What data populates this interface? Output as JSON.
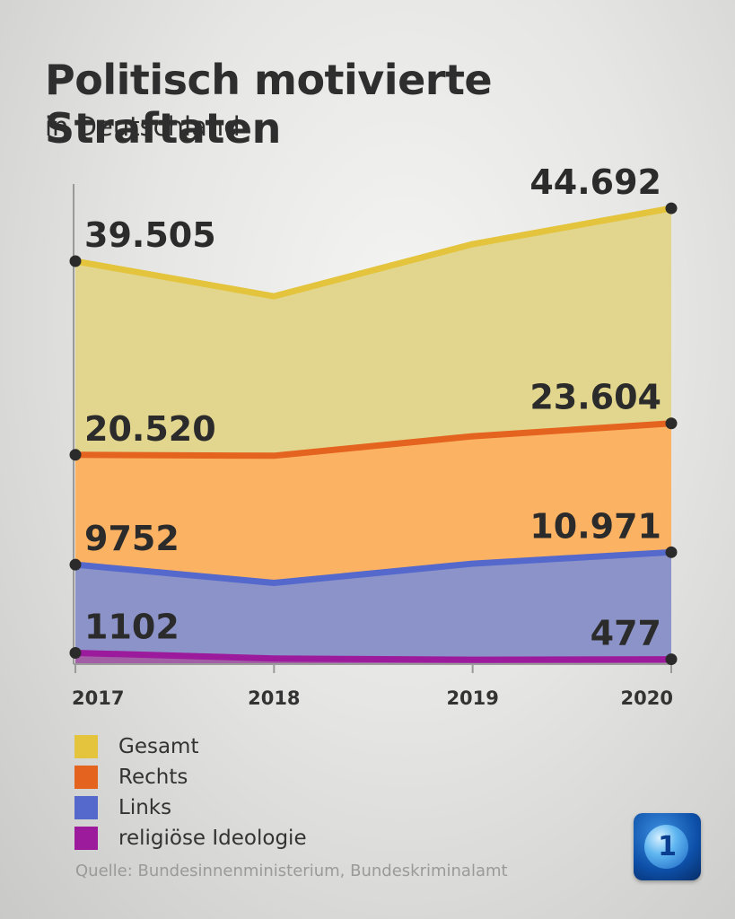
{
  "chart_data": {
    "type": "area",
    "title": "Politisch motivierte Straftaten",
    "subtitle": "in Deutschland",
    "categories": [
      "2017",
      "2018",
      "2019",
      "2020"
    ],
    "ylim": [
      0,
      50000
    ],
    "series": [
      {
        "name": "Gesamt",
        "values": [
          39505,
          36062,
          41177,
          44692
        ],
        "labels": [
          "39.505",
          "",
          "",
          "44.692"
        ],
        "color": "#e3c43c",
        "fill": "#e2d68e"
      },
      {
        "name": "Rechts",
        "values": [
          20520,
          20431,
          22342,
          23604
        ],
        "labels": [
          "20.520",
          "",
          "",
          "23.604"
        ],
        "color": "#e4631e",
        "fill": "#fcb263"
      },
      {
        "name": "Links",
        "values": [
          9752,
          7961,
          9849,
          10971
        ],
        "labels": [
          "9752",
          "",
          "",
          "10.971"
        ],
        "color": "#5568cc",
        "fill": "#8b93c8"
      },
      {
        "name": "religiöse Ideologie",
        "values": [
          1102,
          555,
          425,
          477
        ],
        "labels": [
          "1102",
          "",
          "",
          "477"
        ],
        "color": "#9c1a9c",
        "fill": "#a35fa6"
      }
    ],
    "legend": "bottom-left",
    "grid": false
  },
  "source": "Quelle: Bundesinnenministerium, Bundeskriminalamt",
  "logo_icon": "tagesschau-logo-icon"
}
